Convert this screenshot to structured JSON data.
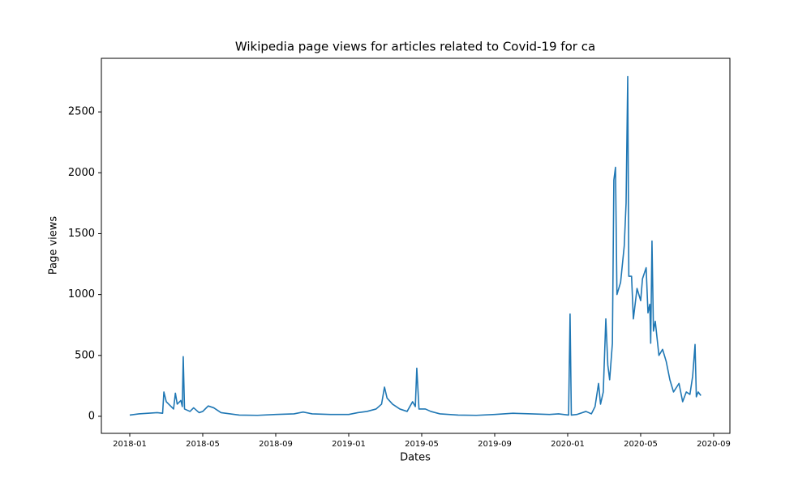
{
  "chart_data": {
    "type": "line",
    "title": "Wikipedia page views for articles related to Covid-19 for ca",
    "xlabel": "Dates",
    "ylabel": "Page views",
    "x": [
      0,
      0.5,
      1,
      1.5,
      1.8,
      1.87,
      2.0,
      2.2,
      2.4,
      2.5,
      2.6,
      2.8,
      2.88,
      2.93,
      3.0,
      3.3,
      3.5,
      3.8,
      4.0,
      4.3,
      4.6,
      5.0,
      5.5,
      6,
      7,
      8,
      9,
      9.5,
      10,
      11,
      12,
      12.5,
      13,
      13.5,
      13.8,
      13.96,
      14.1,
      14.4,
      14.8,
      15.2,
      15.5,
      15.65,
      15.73,
      15.85,
      16.2,
      16.5,
      17,
      18,
      19,
      20,
      21,
      22,
      23,
      23.5,
      24.05,
      24.13,
      24.2,
      24.5,
      25,
      25.3,
      25.5,
      25.69,
      25.8,
      25.95,
      26.09,
      26.2,
      26.3,
      26.45,
      26.53,
      26.62,
      26.7,
      26.9,
      27.1,
      27.2,
      27.29,
      27.35,
      27.5,
      27.6,
      27.8,
      28.0,
      28.1,
      28.3,
      28.4,
      28.5,
      28.55,
      28.62,
      28.7,
      28.8,
      29.0,
      29.2,
      29.4,
      29.6,
      29.8,
      30.1,
      30.3,
      30.5,
      30.7,
      30.85,
      30.98,
      31.05,
      31.15,
      31.3
    ],
    "values": [
      10,
      20,
      25,
      30,
      25,
      200,
      120,
      90,
      60,
      190,
      100,
      130,
      80,
      490,
      60,
      40,
      70,
      30,
      40,
      85,
      70,
      30,
      20,
      10,
      8,
      15,
      20,
      35,
      20,
      15,
      15,
      30,
      40,
      60,
      100,
      240,
      150,
      100,
      60,
      40,
      120,
      80,
      395,
      60,
      60,
      40,
      20,
      10,
      8,
      15,
      25,
      20,
      15,
      20,
      10,
      840,
      10,
      15,
      40,
      20,
      80,
      270,
      100,
      200,
      800,
      420,
      300,
      600,
      1940,
      2045,
      1000,
      1100,
      1400,
      1750,
      2790,
      1150,
      1150,
      800,
      1050,
      950,
      1130,
      1220,
      850,
      920,
      600,
      1440,
      700,
      780,
      500,
      550,
      450,
      300,
      200,
      270,
      120,
      200,
      180,
      330,
      590,
      160,
      200,
      170
    ],
    "color": "#1f77b4",
    "xlim": [
      -1.556,
      32.89
    ],
    "ylim": [
      -140,
      2940
    ],
    "xticks": [
      {
        "value": 0,
        "label": "2018-01"
      },
      {
        "value": 4,
        "label": "2018-05"
      },
      {
        "value": 8,
        "label": "2018-09"
      },
      {
        "value": 12,
        "label": "2019-01"
      },
      {
        "value": 16,
        "label": "2019-05"
      },
      {
        "value": 20,
        "label": "2019-09"
      },
      {
        "value": 24,
        "label": "2020-01"
      },
      {
        "value": 28,
        "label": "2020-05"
      },
      {
        "value": 32,
        "label": "2020-09"
      }
    ],
    "yticks": [
      0,
      500,
      1000,
      1500,
      2000,
      2500
    ]
  }
}
